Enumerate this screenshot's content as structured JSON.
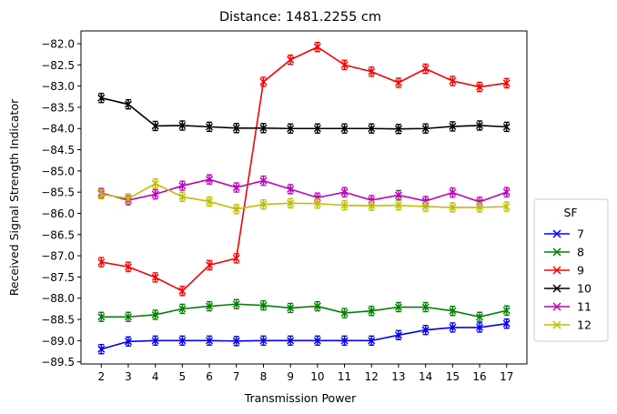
{
  "chart_data": {
    "type": "line",
    "title": "Distance: 1481.2255 cm",
    "xlabel": "Transmission Power",
    "ylabel": "Received Signal Strength Indicator",
    "x": [
      2,
      3,
      4,
      5,
      6,
      7,
      8,
      9,
      10,
      11,
      12,
      13,
      14,
      15,
      16,
      17
    ],
    "xlim": [
      1.25,
      17.75
    ],
    "ylim": [
      -89.55,
      -81.7
    ],
    "yticks": [
      -89.5,
      -89.0,
      -88.5,
      -88.0,
      -87.5,
      -87.0,
      -86.5,
      -86.0,
      -85.5,
      -85.0,
      -84.5,
      -84.0,
      -83.5,
      -83.0,
      -82.5,
      -82.0
    ],
    "ytick_labels": [
      "−89.5",
      "−89.0",
      "−88.5",
      "−88.0",
      "−87.5",
      "−87.0",
      "−86.5",
      "−86.0",
      "−85.5",
      "−85.0",
      "−84.5",
      "−84.0",
      "−83.5",
      "−83.0",
      "−82.5",
      "−82.0"
    ],
    "marker": "x",
    "grid": false,
    "legend": {
      "title": "SF",
      "placement": "outside-right"
    },
    "series": [
      {
        "name": "7",
        "color": "#0000ff",
        "values": [
          -89.2,
          -89.02,
          -89.0,
          -89.0,
          -89.0,
          -89.01,
          -89.0,
          -89.0,
          -89.0,
          -89.0,
          -89.0,
          -88.87,
          -88.75,
          -88.69,
          -88.69,
          -88.6
        ]
      },
      {
        "name": "8",
        "color": "#008000",
        "values": [
          -88.44,
          -88.44,
          -88.39,
          -88.25,
          -88.19,
          -88.14,
          -88.17,
          -88.23,
          -88.19,
          -88.35,
          -88.3,
          -88.21,
          -88.21,
          -88.3,
          -88.44,
          -88.29
        ]
      },
      {
        "name": "9",
        "color": "#ff0000",
        "values": [
          -87.15,
          -87.26,
          -87.51,
          -87.83,
          -87.22,
          -87.06,
          -82.9,
          -82.38,
          -82.08,
          -82.5,
          -82.66,
          -82.92,
          -82.59,
          -82.88,
          -83.02,
          -82.93
        ]
      },
      {
        "name": "10",
        "color": "#000000",
        "values": [
          -83.28,
          -83.43,
          -83.94,
          -83.93,
          -83.96,
          -83.99,
          -83.99,
          -84.0,
          -84.0,
          -84.0,
          -84.0,
          -84.01,
          -84.0,
          -83.95,
          -83.93,
          -83.96
        ]
      },
      {
        "name": "11",
        "color": "#bf00bf",
        "values": [
          -85.52,
          -85.69,
          -85.55,
          -85.35,
          -85.2,
          -85.39,
          -85.23,
          -85.43,
          -85.63,
          -85.5,
          -85.69,
          -85.57,
          -85.71,
          -85.51,
          -85.73,
          -85.5
        ]
      },
      {
        "name": "12",
        "color": "#bfbf00",
        "values": [
          -85.55,
          -85.65,
          -85.3,
          -85.61,
          -85.72,
          -85.9,
          -85.79,
          -85.76,
          -85.77,
          -85.81,
          -85.82,
          -85.81,
          -85.84,
          -85.86,
          -85.86,
          -85.84
        ]
      }
    ]
  }
}
